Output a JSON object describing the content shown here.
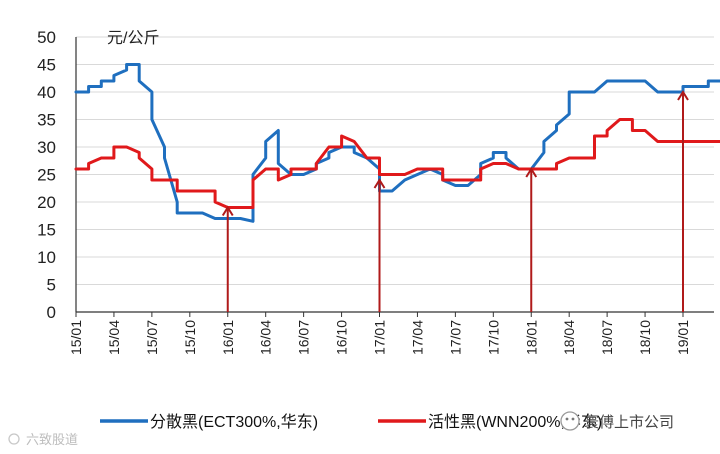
{
  "chart_data": {
    "type": "line",
    "ylabel": "元/公斤",
    "ylim": [
      0,
      50
    ],
    "yticks": [
      0,
      5,
      10,
      15,
      20,
      25,
      30,
      35,
      40,
      45,
      50
    ],
    "xlim": [
      "15/01",
      "19/04"
    ],
    "xticks": [
      "15/01",
      "15/04",
      "15/07",
      "15/10",
      "16/01",
      "16/04",
      "16/07",
      "16/10",
      "17/01",
      "17/04",
      "17/07",
      "17/10",
      "18/01",
      "18/04",
      "18/07",
      "18/10",
      "19/01"
    ],
    "grid": "y",
    "legend": "bottom",
    "series": [
      {
        "name": "分散黑(ECT300%,华东)",
        "color": "#1f6fbf",
        "points": [
          [
            "15/01",
            40
          ],
          [
            "15/02",
            40
          ],
          [
            "15/02",
            41
          ],
          [
            "15/03",
            41
          ],
          [
            "15/03",
            42
          ],
          [
            "15/04",
            42
          ],
          [
            "15/04",
            43
          ],
          [
            "15/05",
            44
          ],
          [
            "15/05",
            45
          ],
          [
            "15/06",
            45
          ],
          [
            "15/06",
            42
          ],
          [
            "15/07",
            40
          ],
          [
            "15/07",
            35
          ],
          [
            "15/08",
            30
          ],
          [
            "15/08",
            28
          ],
          [
            "15/09",
            20
          ],
          [
            "15/09",
            18
          ],
          [
            "15/10",
            18
          ],
          [
            "15/11",
            18
          ],
          [
            "15/12",
            17
          ],
          [
            "16/01",
            17
          ],
          [
            "16/02",
            17
          ],
          [
            "16/03",
            16.5
          ],
          [
            "16/03",
            25
          ],
          [
            "16/04",
            28
          ],
          [
            "16/04",
            31
          ],
          [
            "16/05",
            33
          ],
          [
            "16/05",
            27
          ],
          [
            "16/06",
            25
          ],
          [
            "16/07",
            25
          ],
          [
            "16/08",
            26
          ],
          [
            "16/08",
            27
          ],
          [
            "16/09",
            28
          ],
          [
            "16/09",
            29
          ],
          [
            "16/10",
            30
          ],
          [
            "16/11",
            30
          ],
          [
            "16/11",
            29
          ],
          [
            "16/12",
            28
          ],
          [
            "17/01",
            26
          ],
          [
            "17/01",
            24
          ],
          [
            "17/01",
            22
          ],
          [
            "17/02",
            22
          ],
          [
            "17/03",
            24
          ],
          [
            "17/04",
            25
          ],
          [
            "17/05",
            26
          ],
          [
            "17/06",
            25
          ],
          [
            "17/06",
            24
          ],
          [
            "17/07",
            23
          ],
          [
            "17/08",
            23
          ],
          [
            "17/09",
            25
          ],
          [
            "17/09",
            27
          ],
          [
            "17/10",
            28
          ],
          [
            "17/10",
            29
          ],
          [
            "17/11",
            29
          ],
          [
            "17/11",
            28
          ],
          [
            "17/12",
            26
          ],
          [
            "18/01",
            26
          ],
          [
            "18/02",
            29
          ],
          [
            "18/02",
            31
          ],
          [
            "18/03",
            33
          ],
          [
            "18/03",
            34
          ],
          [
            "18/04",
            36
          ],
          [
            "18/04",
            40
          ],
          [
            "18/05",
            40
          ],
          [
            "18/06",
            40
          ],
          [
            "18/07",
            42
          ],
          [
            "18/08",
            42
          ],
          [
            "18/09",
            42
          ],
          [
            "18/10",
            42
          ],
          [
            "18/11",
            40
          ],
          [
            "18/12",
            40
          ],
          [
            "19/01",
            40
          ],
          [
            "19/01",
            41
          ],
          [
            "19/02",
            41
          ],
          [
            "19/03",
            41
          ],
          [
            "19/03",
            42
          ],
          [
            "19/04",
            42
          ]
        ]
      },
      {
        "name": "活性黑(WNN200%,华东)",
        "color": "#e0191b",
        "points": [
          [
            "15/01",
            26
          ],
          [
            "15/02",
            26
          ],
          [
            "15/02",
            27
          ],
          [
            "15/03",
            28
          ],
          [
            "15/04",
            28
          ],
          [
            "15/04",
            30
          ],
          [
            "15/05",
            30
          ],
          [
            "15/06",
            29
          ],
          [
            "15/06",
            28
          ],
          [
            "15/07",
            26
          ],
          [
            "15/07",
            24
          ],
          [
            "15/08",
            24
          ],
          [
            "15/09",
            24
          ],
          [
            "15/09",
            22
          ],
          [
            "15/10",
            22
          ],
          [
            "15/11",
            22
          ],
          [
            "15/12",
            22
          ],
          [
            "15/12",
            20
          ],
          [
            "16/01",
            19
          ],
          [
            "16/02",
            19
          ],
          [
            "16/03",
            19
          ],
          [
            "16/03",
            24
          ],
          [
            "16/04",
            26
          ],
          [
            "16/05",
            26
          ],
          [
            "16/05",
            24
          ],
          [
            "16/06",
            25
          ],
          [
            "16/06",
            26
          ],
          [
            "16/07",
            26
          ],
          [
            "16/08",
            26
          ],
          [
            "16/08",
            27
          ],
          [
            "16/09",
            30
          ],
          [
            "16/10",
            30
          ],
          [
            "16/10",
            32
          ],
          [
            "16/11",
            31
          ],
          [
            "16/12",
            28
          ],
          [
            "17/01",
            28
          ],
          [
            "17/01",
            25
          ],
          [
            "17/02",
            25
          ],
          [
            "17/03",
            25
          ],
          [
            "17/04",
            26
          ],
          [
            "17/05",
            26
          ],
          [
            "17/06",
            26
          ],
          [
            "17/06",
            24
          ],
          [
            "17/07",
            24
          ],
          [
            "17/08",
            24
          ],
          [
            "17/09",
            24
          ],
          [
            "17/09",
            26
          ],
          [
            "17/10",
            27
          ],
          [
            "17/11",
            27
          ],
          [
            "17/12",
            26
          ],
          [
            "18/01",
            26
          ],
          [
            "18/02",
            26
          ],
          [
            "18/03",
            26
          ],
          [
            "18/03",
            27
          ],
          [
            "18/04",
            28
          ],
          [
            "18/05",
            28
          ],
          [
            "18/06",
            28
          ],
          [
            "18/06",
            32
          ],
          [
            "18/07",
            32
          ],
          [
            "18/07",
            33
          ],
          [
            "18/08",
            35
          ],
          [
            "18/09",
            35
          ],
          [
            "18/09",
            33
          ],
          [
            "18/10",
            33
          ],
          [
            "18/11",
            31
          ],
          [
            "18/12",
            31
          ],
          [
            "19/01",
            31
          ],
          [
            "19/02",
            31
          ],
          [
            "19/03",
            31
          ],
          [
            "19/04",
            31
          ]
        ]
      }
    ],
    "annotations": [
      {
        "x": "16/01",
        "y": 19
      },
      {
        "x": "17/01",
        "y": 24
      },
      {
        "x": "18/01",
        "y": 26
      },
      {
        "x": "19/01",
        "y": 40
      }
    ],
    "annotation_color": "#b01a1a"
  },
  "legend": {
    "series_1": "分散黑(ECT300%,华东)",
    "series_2": "活性黑(WNN200%,华东)"
  },
  "watermark": {
    "left": "六致股道",
    "right": "寰傅上市公司"
  }
}
